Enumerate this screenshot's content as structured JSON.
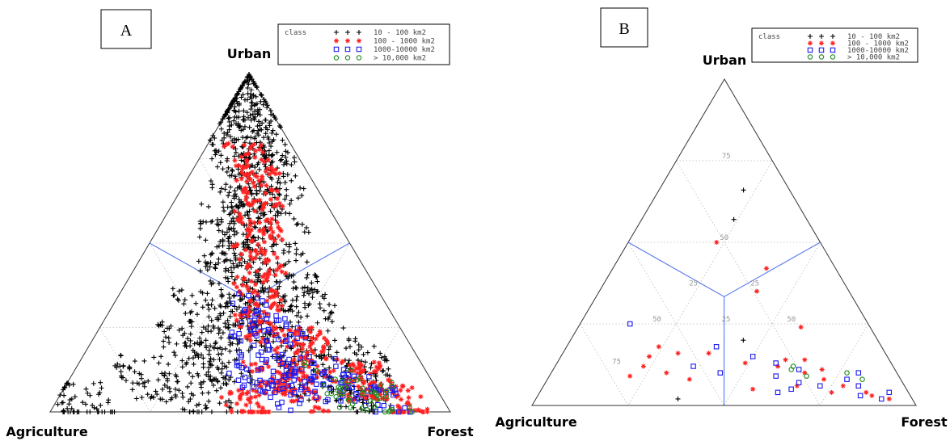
{
  "colors": {
    "class1": "#000000",
    "class2": "#ff2020",
    "class3": "#1a1aee",
    "class4": "#1e8c1e",
    "divider": "#5577ee"
  },
  "legend": {
    "title": "class",
    "entries": [
      {
        "class": "10 - 100 km2",
        "marker": "plus",
        "color": "#000000"
      },
      {
        "class": "100 - 1000 km2",
        "marker": "star",
        "color": "#ff2020"
      },
      {
        "class": "1000-10000 km2",
        "marker": "square",
        "color": "#1a1aee"
      },
      {
        "class": "> 10,000 km2",
        "marker": "circle",
        "color": "#1e8c1e"
      }
    ]
  },
  "chart_data": [
    {
      "type": "scatter",
      "subtype": "ternary",
      "panel_label": "A",
      "vertices": {
        "top": "Urban",
        "left": "Agriculture",
        "right": "Forest"
      },
      "grid": true,
      "legend_placement": "top",
      "series": [
        {
          "name": "10 - 100 km2",
          "marker": "plus",
          "color": "#000000",
          "points_urban_ag_forest": [
            [
              0.95,
              0.03,
              0.02
            ],
            [
              0.9,
              0.05,
              0.05
            ],
            [
              0.85,
              0.1,
              0.05
            ],
            [
              0.8,
              0.08,
              0.12
            ],
            [
              0.75,
              0.15,
              0.1
            ],
            [
              0.7,
              0.1,
              0.2
            ],
            [
              0.65,
              0.2,
              0.15
            ],
            [
              0.6,
              0.15,
              0.25
            ],
            [
              0.55,
              0.25,
              0.2
            ],
            [
              0.5,
              0.3,
              0.2
            ],
            [
              0.45,
              0.2,
              0.35
            ],
            [
              0.4,
              0.35,
              0.25
            ],
            [
              0.35,
              0.3,
              0.35
            ],
            [
              0.3,
              0.45,
              0.25
            ],
            [
              0.25,
              0.4,
              0.35
            ],
            [
              0.2,
              0.55,
              0.25
            ],
            [
              0.15,
              0.5,
              0.35
            ],
            [
              0.1,
              0.7,
              0.2
            ],
            [
              0.05,
              0.6,
              0.35
            ],
            [
              0.02,
              0.9,
              0.08
            ],
            [
              0.3,
              0.2,
              0.5
            ],
            [
              0.2,
              0.3,
              0.5
            ],
            [
              0.1,
              0.3,
              0.6
            ],
            [
              0.05,
              0.2,
              0.75
            ],
            [
              0.15,
              0.15,
              0.7
            ]
          ]
        },
        {
          "name": "100 - 1000 km2",
          "marker": "star",
          "color": "#ff2020",
          "points_urban_ag_forest": [
            [
              0.75,
              0.12,
              0.13
            ],
            [
              0.65,
              0.15,
              0.2
            ],
            [
              0.55,
              0.2,
              0.25
            ],
            [
              0.45,
              0.25,
              0.3
            ],
            [
              0.35,
              0.3,
              0.35
            ],
            [
              0.25,
              0.35,
              0.4
            ],
            [
              0.2,
              0.25,
              0.55
            ],
            [
              0.15,
              0.3,
              0.55
            ],
            [
              0.1,
              0.4,
              0.5
            ],
            [
              0.08,
              0.2,
              0.72
            ],
            [
              0.05,
              0.35,
              0.6
            ],
            [
              0.03,
              0.1,
              0.87
            ],
            [
              0.02,
              0.5,
              0.48
            ],
            [
              0.1,
              0.15,
              0.75
            ]
          ]
        },
        {
          "name": "1000-10000 km2",
          "marker": "square",
          "color": "#1a1aee",
          "points_urban_ag_forest": [
            [
              0.3,
              0.35,
              0.35
            ],
            [
              0.25,
              0.3,
              0.45
            ],
            [
              0.2,
              0.4,
              0.4
            ],
            [
              0.15,
              0.35,
              0.5
            ],
            [
              0.12,
              0.25,
              0.63
            ],
            [
              0.1,
              0.45,
              0.45
            ],
            [
              0.08,
              0.3,
              0.62
            ],
            [
              0.06,
              0.2,
              0.74
            ],
            [
              0.05,
              0.4,
              0.55
            ],
            [
              0.03,
              0.15,
              0.82
            ]
          ]
        },
        {
          "name": "> 10,000 km2",
          "marker": "circle",
          "color": "#1e8c1e",
          "points_urban_ag_forest": [
            [
              0.1,
              0.25,
              0.65
            ],
            [
              0.08,
              0.2,
              0.72
            ],
            [
              0.06,
              0.15,
              0.79
            ],
            [
              0.05,
              0.22,
              0.73
            ],
            [
              0.04,
              0.12,
              0.84
            ]
          ]
        }
      ]
    },
    {
      "type": "scatter",
      "subtype": "ternary",
      "panel_label": "B",
      "vertices": {
        "top": "Urban",
        "left": "Agriculture",
        "right": "Forest"
      },
      "grid": true,
      "grid_levels": [
        25,
        50,
        75
      ],
      "tick_labels": [
        "75",
        "50",
        "25",
        "25",
        "50",
        "25",
        "50",
        "75"
      ],
      "legend_placement": "top",
      "series": [
        {
          "name": "10 - 100 km2",
          "marker": "plus",
          "color": "#000000",
          "points_urban_ag_forest": [
            [
              0.66,
              0.12,
              0.22
            ],
            [
              0.57,
              0.19,
              0.24
            ],
            [
              0.02,
              0.61,
              0.37
            ],
            [
              0.2,
              0.35,
              0.45
            ]
          ]
        },
        {
          "name": "100 - 1000 km2",
          "marker": "star",
          "color": "#ff2020",
          "points_urban_ag_forest": [
            [
              0.5,
              0.27,
              0.23
            ],
            [
              0.42,
              0.18,
              0.4
            ],
            [
              0.35,
              0.24,
              0.41
            ],
            [
              0.24,
              0.18,
              0.58
            ],
            [
              0.18,
              0.58,
              0.24
            ],
            [
              0.16,
              0.54,
              0.3
            ],
            [
              0.15,
              0.62,
              0.23
            ],
            [
              0.12,
              0.65,
              0.23
            ],
            [
              0.1,
              0.6,
              0.3
            ],
            [
              0.09,
              0.7,
              0.21
            ],
            [
              0.08,
              0.55,
              0.37
            ],
            [
              0.16,
              0.46,
              0.38
            ],
            [
              0.14,
              0.27,
              0.59
            ],
            [
              0.12,
              0.3,
              0.58
            ],
            [
              0.1,
              0.24,
              0.66
            ],
            [
              0.08,
              0.2,
              0.72
            ],
            [
              0.06,
              0.28,
              0.66
            ],
            [
              0.04,
              0.11,
              0.85
            ],
            [
              0.03,
              0.1,
              0.87
            ],
            [
              0.14,
              0.22,
              0.64
            ],
            [
              0.13,
              0.38,
              0.49
            ],
            [
              0.11,
              0.19,
              0.7
            ],
            [
              0.05,
              0.4,
              0.55
            ],
            [
              0.06,
              0.16,
              0.78
            ],
            [
              0.04,
              0.2,
              0.76
            ],
            [
              0.02,
              0.06,
              0.92
            ]
          ]
        },
        {
          "name": "1000-10000 km2",
          "marker": "square",
          "color": "#1a1aee",
          "points_urban_ag_forest": [
            [
              0.25,
              0.62,
              0.13
            ],
            [
              0.18,
              0.43,
              0.39
            ],
            [
              0.15,
              0.35,
              0.5
            ],
            [
              0.12,
              0.52,
              0.36
            ],
            [
              0.1,
              0.46,
              0.44
            ],
            [
              0.13,
              0.3,
              0.57
            ],
            [
              0.11,
              0.25,
              0.64
            ],
            [
              0.09,
              0.32,
              0.59
            ],
            [
              0.07,
              0.27,
              0.66
            ],
            [
              0.06,
              0.22,
              0.72
            ],
            [
              0.05,
              0.3,
              0.65
            ],
            [
              0.04,
              0.34,
              0.62
            ],
            [
              0.06,
              0.12,
              0.82
            ],
            [
              0.03,
              0.13,
              0.84
            ],
            [
              0.02,
              0.08,
              0.9
            ],
            [
              0.1,
              0.1,
              0.8
            ],
            [
              0.08,
              0.14,
              0.78
            ],
            [
              0.04,
              0.05,
              0.91
            ]
          ]
        },
        {
          "name": "> 10,000 km2",
          "marker": "circle",
          "color": "#1e8c1e",
          "points_urban_ag_forest": [
            [
              0.12,
              0.26,
              0.62
            ],
            [
              0.11,
              0.27,
              0.62
            ],
            [
              0.1,
              0.13,
              0.77
            ],
            [
              0.08,
              0.1,
              0.82
            ],
            [
              0.09,
              0.24,
              0.67
            ]
          ]
        }
      ]
    }
  ]
}
